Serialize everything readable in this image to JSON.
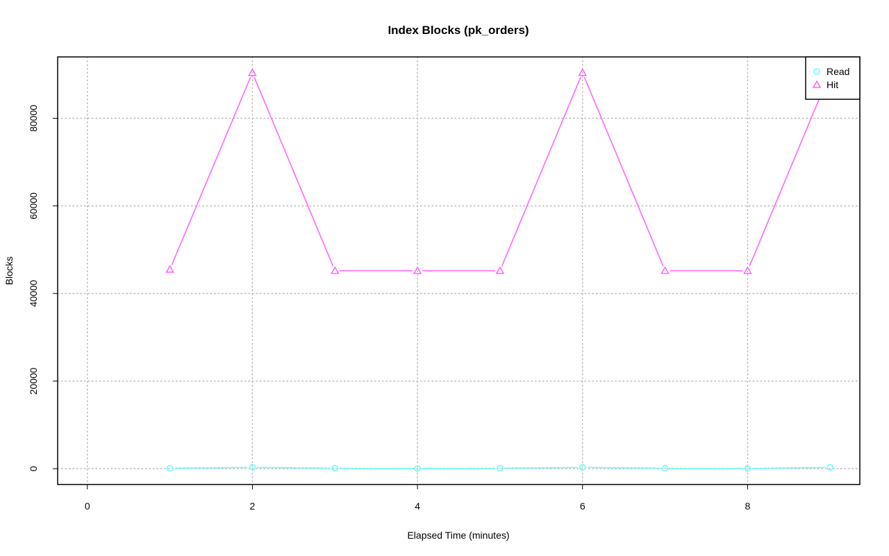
{
  "chart_data": {
    "type": "line",
    "title": "Index Blocks (pk_orders)",
    "xlabel": "Elapsed Time (minutes)",
    "ylabel": "Blocks",
    "xlim": [
      0,
      9
    ],
    "ylim": [
      0,
      90400
    ],
    "xticks": [
      0,
      2,
      4,
      6,
      8
    ],
    "yticks": [
      0,
      20000,
      40000,
      60000,
      80000
    ],
    "grid": true,
    "legend_position": "top-right",
    "x": [
      1,
      2,
      3,
      4,
      5,
      6,
      7,
      8,
      9
    ],
    "series": [
      {
        "name": "Read",
        "color": "#66ffff",
        "marker": "circle",
        "values": [
          100,
          300,
          100,
          50,
          100,
          300,
          100,
          50,
          300
        ]
      },
      {
        "name": "Hit",
        "color": "#ff66ff",
        "marker": "triangle",
        "values": [
          45500,
          90400,
          45200,
          45200,
          45200,
          90400,
          45200,
          45200,
          90400
        ]
      }
    ]
  }
}
